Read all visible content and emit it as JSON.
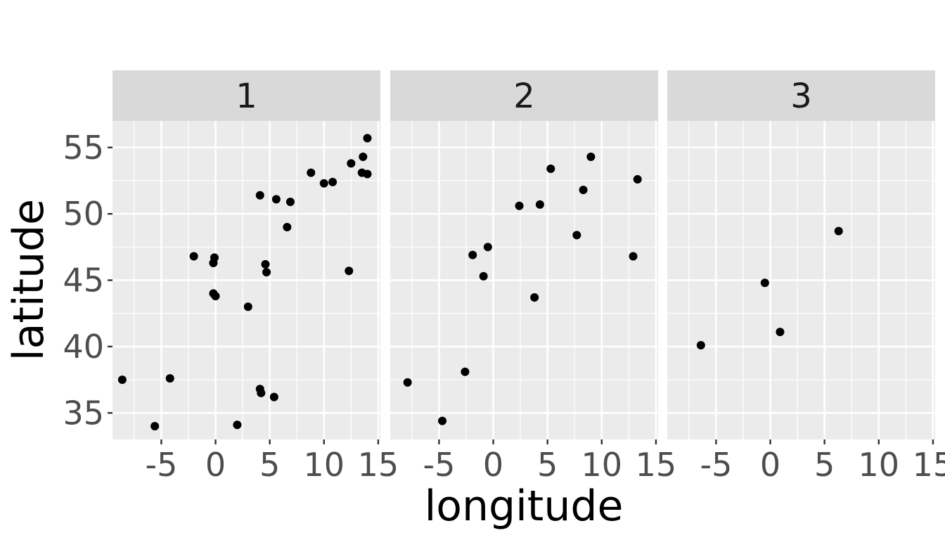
{
  "chart_data": {
    "type": "scatter",
    "title": "",
    "xlabel": "longitude",
    "ylabel": "latitude",
    "xlim": [
      -9.5,
      15.2
    ],
    "ylim": [
      33,
      57
    ],
    "x_ticks": [
      -5,
      0,
      5,
      10,
      15
    ],
    "x_tick_labels": [
      "-5",
      "0",
      "5",
      "10",
      "15"
    ],
    "y_ticks": [
      35,
      40,
      45,
      50,
      55
    ],
    "y_tick_labels": [
      "35",
      "40",
      "45",
      "50",
      "55"
    ],
    "grid": true,
    "legend": "none",
    "point_color": "#000000",
    "panel_background": "#ebebeb",
    "strip_background": "#d9d9d9",
    "panels": [
      {
        "label": "1",
        "points": [
          {
            "x": -8.6,
            "y": 37.5
          },
          {
            "x": -4.2,
            "y": 37.6
          },
          {
            "x": -5.6,
            "y": 34.0
          },
          {
            "x": -2.0,
            "y": 46.8
          },
          {
            "x": -0.1,
            "y": 46.7
          },
          {
            "x": -0.2,
            "y": 46.3
          },
          {
            "x": -0.2,
            "y": 44.0
          },
          {
            "x": 0.0,
            "y": 43.8
          },
          {
            "x": 3.0,
            "y": 43.0
          },
          {
            "x": 2.0,
            "y": 34.1
          },
          {
            "x": 4.1,
            "y": 36.8
          },
          {
            "x": 4.2,
            "y": 36.5
          },
          {
            "x": 5.4,
            "y": 36.2
          },
          {
            "x": 4.6,
            "y": 46.2
          },
          {
            "x": 4.7,
            "y": 45.6
          },
          {
            "x": 4.1,
            "y": 51.4
          },
          {
            "x": 5.6,
            "y": 51.1
          },
          {
            "x": 6.9,
            "y": 50.9
          },
          {
            "x": 6.6,
            "y": 49.0
          },
          {
            "x": 8.8,
            "y": 53.1
          },
          {
            "x": 10.0,
            "y": 52.3
          },
          {
            "x": 10.8,
            "y": 52.4
          },
          {
            "x": 12.3,
            "y": 45.7
          },
          {
            "x": 12.5,
            "y": 53.8
          },
          {
            "x": 13.5,
            "y": 53.1
          },
          {
            "x": 13.6,
            "y": 54.3
          },
          {
            "x": 14.0,
            "y": 55.7
          },
          {
            "x": 14.0,
            "y": 53.0
          }
        ]
      },
      {
        "label": "2",
        "points": [
          {
            "x": -7.9,
            "y": 37.3
          },
          {
            "x": -4.7,
            "y": 34.4
          },
          {
            "x": -2.6,
            "y": 38.1
          },
          {
            "x": -1.9,
            "y": 46.9
          },
          {
            "x": -0.9,
            "y": 45.3
          },
          {
            "x": -0.5,
            "y": 47.5
          },
          {
            "x": 2.4,
            "y": 50.6
          },
          {
            "x": 3.8,
            "y": 43.7
          },
          {
            "x": 4.3,
            "y": 50.7
          },
          {
            "x": 5.3,
            "y": 53.4
          },
          {
            "x": 7.7,
            "y": 48.4
          },
          {
            "x": 8.3,
            "y": 51.8
          },
          {
            "x": 9.0,
            "y": 54.3
          },
          {
            "x": 12.9,
            "y": 46.8
          },
          {
            "x": 13.3,
            "y": 52.6
          }
        ]
      },
      {
        "label": "3",
        "points": [
          {
            "x": -6.4,
            "y": 40.1
          },
          {
            "x": -0.5,
            "y": 44.8
          },
          {
            "x": 0.9,
            "y": 41.1
          },
          {
            "x": 6.3,
            "y": 48.7
          }
        ]
      }
    ]
  }
}
